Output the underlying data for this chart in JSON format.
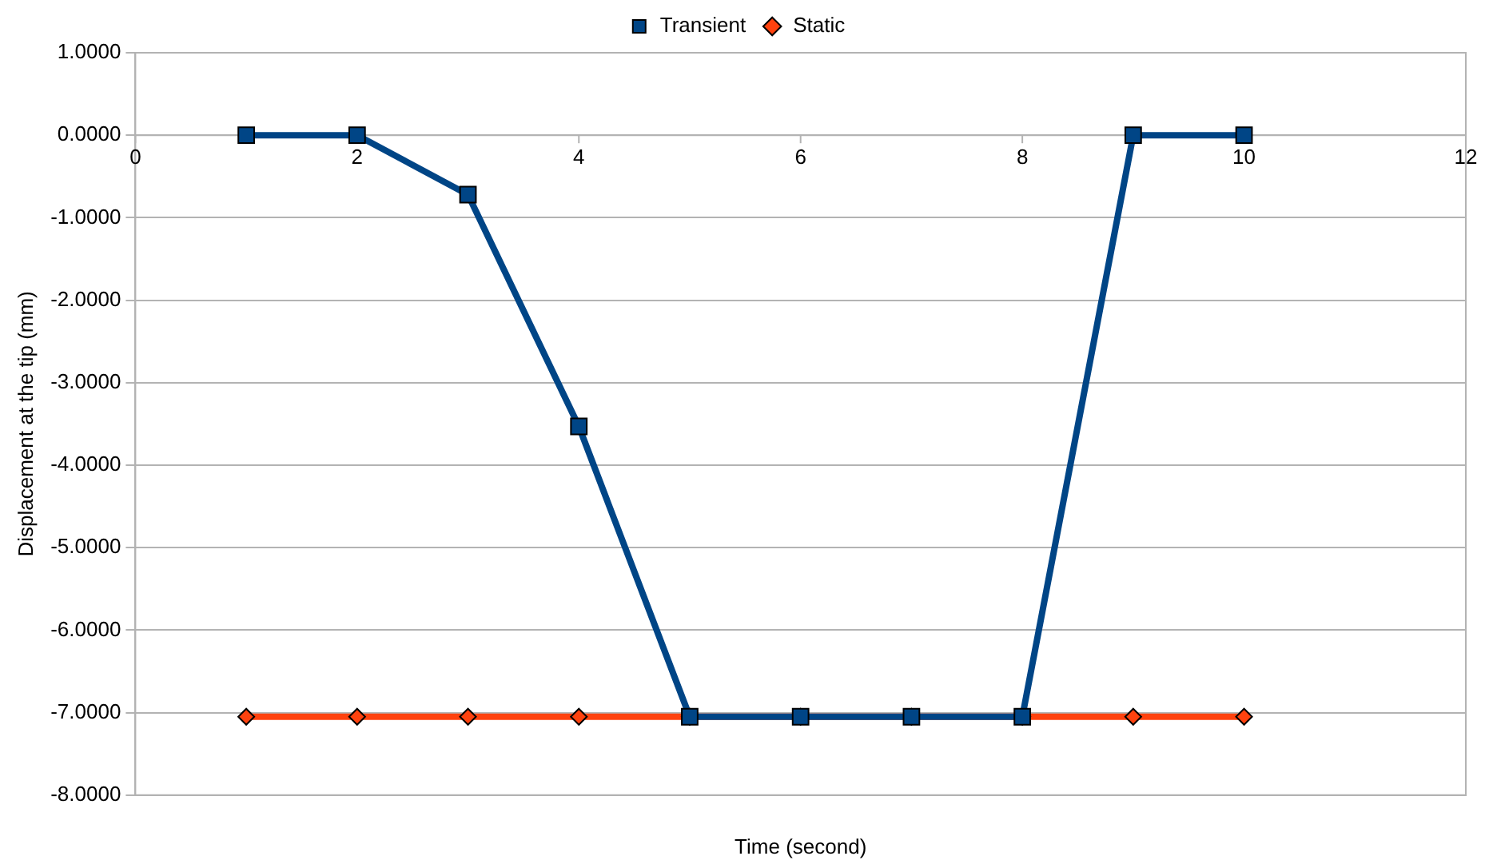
{
  "chart_data": {
    "type": "line",
    "xlabel": "Time (second)",
    "ylabel": "Displacement at the tip (mm)",
    "x": [
      1,
      2,
      3,
      4,
      5,
      6,
      7,
      8,
      9,
      10
    ],
    "series": [
      {
        "name": "Transient",
        "color": "#004586",
        "marker": "square",
        "values": [
          0,
          0,
          -0.72,
          -3.53,
          -7.05,
          -7.05,
          -7.05,
          -7.05,
          0,
          0
        ]
      },
      {
        "name": "Static",
        "color": "#ff420e",
        "marker": "diamond",
        "values": [
          -7.05,
          -7.05,
          -7.05,
          -7.05,
          -7.05,
          -7.05,
          -7.05,
          -7.05,
          -7.05,
          -7.05
        ]
      }
    ],
    "xlim": [
      0,
      12
    ],
    "xticks": [
      0,
      2,
      4,
      6,
      8,
      10,
      12
    ],
    "ylim": [
      -8,
      1
    ],
    "yticks": [
      {
        "value": 1,
        "label": "1.0000"
      },
      {
        "value": 0,
        "label": "0.0000"
      },
      {
        "value": -1,
        "label": "-1.0000"
      },
      {
        "value": -2,
        "label": "-2.0000"
      },
      {
        "value": -3,
        "label": "-3.0000"
      },
      {
        "value": -4,
        "label": "-4.0000"
      },
      {
        "value": -5,
        "label": "-5.0000"
      },
      {
        "value": -6,
        "label": "-6.0000"
      },
      {
        "value": -7,
        "label": "-7.0000"
      },
      {
        "value": -8,
        "label": "-8.0000"
      }
    ],
    "grid": "y",
    "legend": "top",
    "line_style": "solid"
  }
}
